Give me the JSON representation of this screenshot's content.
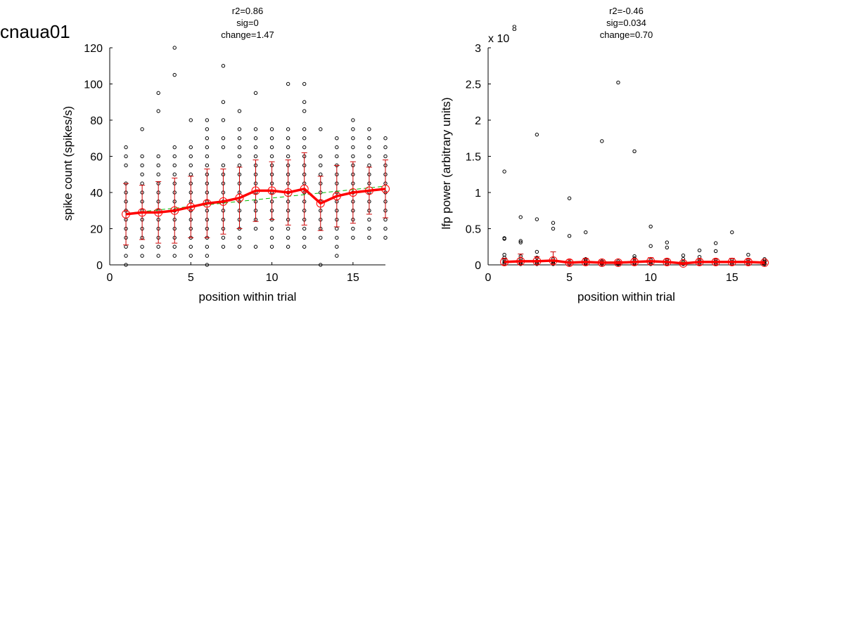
{
  "figure_title": "cnaua01",
  "colors": {
    "mean_line": "#ff0000",
    "error_bars": "#cc0000",
    "fit_line": "#00bb00",
    "points": "#000000"
  },
  "chart_data": [
    {
      "type": "scatter",
      "title": [
        "r2=0.86",
        "sig=0",
        "change=1.47"
      ],
      "xlabel": "position within trial",
      "ylabel": "spike count (spikes/s)",
      "xlim": [
        0,
        17
      ],
      "ylim": [
        0,
        120
      ],
      "xticks": [
        0,
        5,
        10,
        15
      ],
      "yticks": [
        0,
        20,
        40,
        60,
        80,
        100,
        120
      ],
      "exponent_label": "",
      "grid": false,
      "trial_points": [
        {
          "x": 1,
          "y": [
            0,
            5,
            10,
            15,
            20,
            25,
            30,
            35,
            40,
            45,
            55,
            60,
            65
          ]
        },
        {
          "x": 2,
          "y": [
            5,
            10,
            15,
            20,
            25,
            30,
            35,
            40,
            45,
            50,
            55,
            60,
            75
          ]
        },
        {
          "x": 3,
          "y": [
            5,
            10,
            15,
            20,
            25,
            30,
            35,
            40,
            45,
            50,
            55,
            60,
            85,
            95
          ]
        },
        {
          "x": 4,
          "y": [
            5,
            10,
            15,
            20,
            25,
            30,
            35,
            40,
            45,
            50,
            55,
            60,
            65,
            105,
            120
          ]
        },
        {
          "x": 5,
          "y": [
            5,
            10,
            15,
            20,
            25,
            30,
            35,
            40,
            45,
            50,
            55,
            60,
            65,
            80
          ]
        },
        {
          "x": 6,
          "y": [
            0,
            5,
            10,
            15,
            20,
            25,
            30,
            35,
            40,
            45,
            50,
            55,
            60,
            65,
            70,
            75,
            80
          ]
        },
        {
          "x": 7,
          "y": [
            10,
            15,
            20,
            25,
            30,
            35,
            40,
            45,
            50,
            55,
            65,
            70,
            80,
            90,
            110
          ]
        },
        {
          "x": 8,
          "y": [
            10,
            15,
            20,
            25,
            30,
            35,
            40,
            45,
            50,
            55,
            60,
            65,
            70,
            75,
            85
          ]
        },
        {
          "x": 9,
          "y": [
            10,
            20,
            25,
            30,
            35,
            40,
            45,
            50,
            55,
            60,
            65,
            70,
            75,
            95
          ]
        },
        {
          "x": 10,
          "y": [
            10,
            15,
            20,
            25,
            30,
            35,
            40,
            45,
            50,
            55,
            60,
            65,
            70,
            75
          ]
        },
        {
          "x": 11,
          "y": [
            10,
            15,
            20,
            25,
            30,
            35,
            40,
            45,
            50,
            55,
            60,
            65,
            70,
            75,
            100
          ]
        },
        {
          "x": 12,
          "y": [
            10,
            15,
            20,
            25,
            30,
            35,
            40,
            45,
            50,
            55,
            60,
            65,
            70,
            75,
            85,
            90,
            100
          ]
        },
        {
          "x": 13,
          "y": [
            0,
            15,
            20,
            25,
            30,
            35,
            40,
            45,
            50,
            55,
            60,
            75
          ]
        },
        {
          "x": 14,
          "y": [
            5,
            10,
            15,
            20,
            25,
            30,
            35,
            40,
            45,
            50,
            55,
            60,
            65,
            70
          ]
        },
        {
          "x": 15,
          "y": [
            15,
            20,
            25,
            30,
            35,
            40,
            45,
            50,
            55,
            60,
            65,
            70,
            75,
            80
          ]
        },
        {
          "x": 16,
          "y": [
            15,
            20,
            25,
            30,
            35,
            40,
            45,
            50,
            55,
            60,
            65,
            70,
            75
          ]
        },
        {
          "x": 17,
          "y": [
            15,
            20,
            25,
            30,
            35,
            40,
            45,
            50,
            55,
            60,
            65,
            70
          ]
        }
      ],
      "mean": {
        "x": [
          1,
          2,
          3,
          4,
          5,
          6,
          7,
          8,
          9,
          10,
          11,
          12,
          13,
          14,
          15,
          16,
          17
        ],
        "y": [
          28,
          29,
          29,
          30,
          32,
          34,
          35,
          37,
          41,
          41,
          40,
          42,
          34,
          38,
          40,
          41,
          42
        ],
        "err": [
          17,
          15,
          17,
          18,
          17,
          19,
          18,
          17,
          17,
          16,
          18,
          20,
          15,
          17,
          17,
          13,
          16
        ]
      },
      "fit_line": {
        "x": [
          1,
          17
        ],
        "y": [
          28.5,
          43.5
        ]
      }
    },
    {
      "type": "scatter",
      "title": [
        "r2=-0.46",
        "sig=0.034",
        "change=0.70"
      ],
      "xlabel": "position within trial",
      "ylabel": "lfp power (arbitrary units)",
      "xlim": [
        0,
        17
      ],
      "ylim": [
        0,
        3
      ],
      "xticks": [
        0,
        5,
        10,
        15
      ],
      "yticks": [
        0,
        0.5,
        1,
        1.5,
        2,
        2.5,
        3
      ],
      "ytick_labels": [
        "0",
        "0.5",
        "1",
        "1.5",
        "2",
        "2.5",
        "3"
      ],
      "exponent_label": "x 10",
      "exponent_power": "8",
      "grid": false,
      "trial_points": [
        {
          "x": 1,
          "y": [
            0.01,
            0.02,
            0.04,
            0.07,
            0.1,
            0.14,
            0.36,
            0.37,
            1.29
          ]
        },
        {
          "x": 2,
          "y": [
            0.01,
            0.02,
            0.03,
            0.05,
            0.08,
            0.12,
            0.31,
            0.33,
            0.66
          ]
        },
        {
          "x": 3,
          "y": [
            0.01,
            0.03,
            0.05,
            0.1,
            0.18,
            0.63,
            1.8
          ]
        },
        {
          "x": 4,
          "y": [
            0.01,
            0.02,
            0.04,
            0.08,
            0.5,
            0.58
          ]
        },
        {
          "x": 5,
          "y": [
            0.01,
            0.02,
            0.04,
            0.4,
            0.92
          ]
        },
        {
          "x": 6,
          "y": [
            0.01,
            0.02,
            0.03,
            0.06,
            0.08,
            0.45
          ]
        },
        {
          "x": 7,
          "y": [
            0.01,
            0.02,
            0.03,
            0.05,
            1.71
          ]
        },
        {
          "x": 8,
          "y": [
            0.01,
            0.02,
            0.03,
            0.05,
            2.52
          ]
        },
        {
          "x": 9,
          "y": [
            0.01,
            0.02,
            0.03,
            0.05,
            0.09,
            0.12,
            1.57
          ]
        },
        {
          "x": 10,
          "y": [
            0.01,
            0.02,
            0.04,
            0.07,
            0.26,
            0.53
          ]
        },
        {
          "x": 11,
          "y": [
            0.01,
            0.02,
            0.04,
            0.07,
            0.24,
            0.31
          ]
        },
        {
          "x": 12,
          "y": [
            0.01,
            0.02,
            0.04,
            0.08,
            0.13
          ]
        },
        {
          "x": 13,
          "y": [
            0.01,
            0.02,
            0.04,
            0.06,
            0.11,
            0.2
          ]
        },
        {
          "x": 14,
          "y": [
            0.01,
            0.02,
            0.04,
            0.07,
            0.19,
            0.3
          ]
        },
        {
          "x": 15,
          "y": [
            0.01,
            0.02,
            0.04,
            0.07,
            0.45
          ]
        },
        {
          "x": 16,
          "y": [
            0.01,
            0.02,
            0.04,
            0.07,
            0.14
          ]
        },
        {
          "x": 17,
          "y": [
            0.01,
            0.02,
            0.04,
            0.06,
            0.08
          ]
        }
      ],
      "mean": {
        "x": [
          1,
          2,
          3,
          4,
          5,
          6,
          7,
          8,
          9,
          10,
          11,
          12,
          13,
          14,
          15,
          16,
          17
        ],
        "y": [
          0.04,
          0.05,
          0.05,
          0.06,
          0.03,
          0.04,
          0.03,
          0.03,
          0.04,
          0.05,
          0.04,
          0.02,
          0.04,
          0.04,
          0.04,
          0.04,
          0.03
        ],
        "err": [
          0.05,
          0.1,
          0.06,
          0.12,
          0.04,
          0.05,
          0.03,
          0.02,
          0.04,
          0.05,
          0.04,
          0.02,
          0.04,
          0.04,
          0.05,
          0.04,
          0.02
        ]
      },
      "fit_line": {
        "x": [
          1,
          17
        ],
        "y": [
          0.05,
          0.03
        ]
      }
    }
  ]
}
